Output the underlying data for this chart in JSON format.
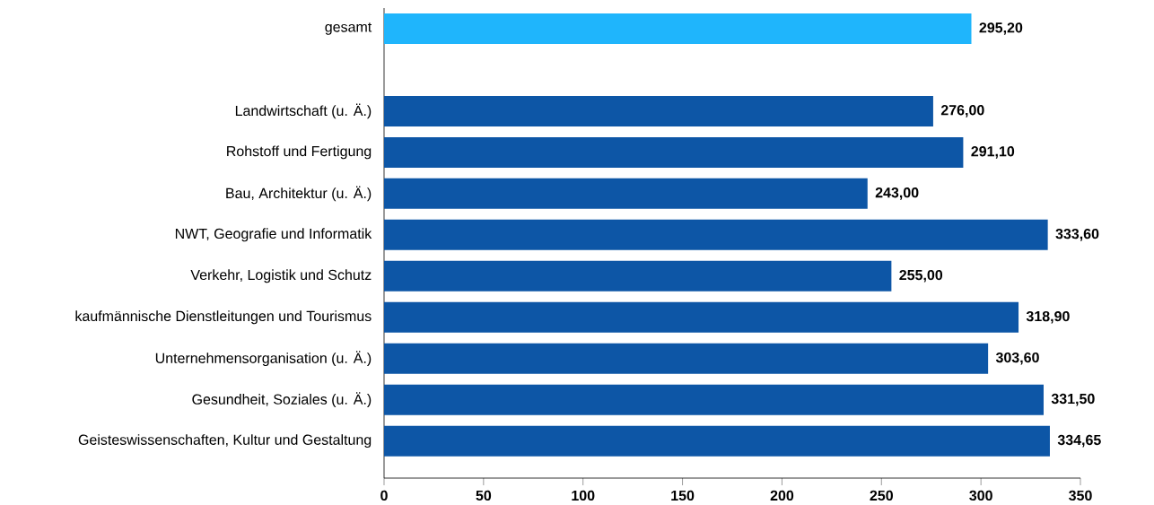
{
  "chart_data": {
    "type": "bar",
    "orientation": "horizontal",
    "categories": [
      "gesamt",
      null,
      "Landwirtschaft (u. Ä.)",
      "Rohstoff und Fertigung",
      "Bau, Architektur (u. Ä.)",
      "NWT, Geografie und Informatik",
      "Verkehr, Logistik und Schutz",
      "kaufmännische Dienstleitungen und Tourismus",
      "Unternehmensorganisation (u. Ä.)",
      "Gesundheit, Soziales (u. Ä.)",
      "Geisteswissenschaften, Kultur und Gestaltung"
    ],
    "values": [
      295.2,
      null,
      276.0,
      291.1,
      243.0,
      333.6,
      255.0,
      318.9,
      303.6,
      331.5,
      334.65
    ],
    "value_labels": [
      "295,20",
      null,
      "276,00",
      "291,10",
      "243,00",
      "333,60",
      "255,00",
      "318,90",
      "303,60",
      "331,50",
      "334,65"
    ],
    "colors": [
      "#1fb5fc",
      null,
      "#0d56a6",
      "#0d56a6",
      "#0d56a6",
      "#0d56a6",
      "#0d56a6",
      "#0d56a6",
      "#0d56a6",
      "#0d56a6",
      "#0d56a6"
    ],
    "xlim": [
      0,
      350
    ],
    "xticks": [
      0,
      50,
      100,
      150,
      200,
      250,
      300,
      350
    ],
    "grid": false
  }
}
